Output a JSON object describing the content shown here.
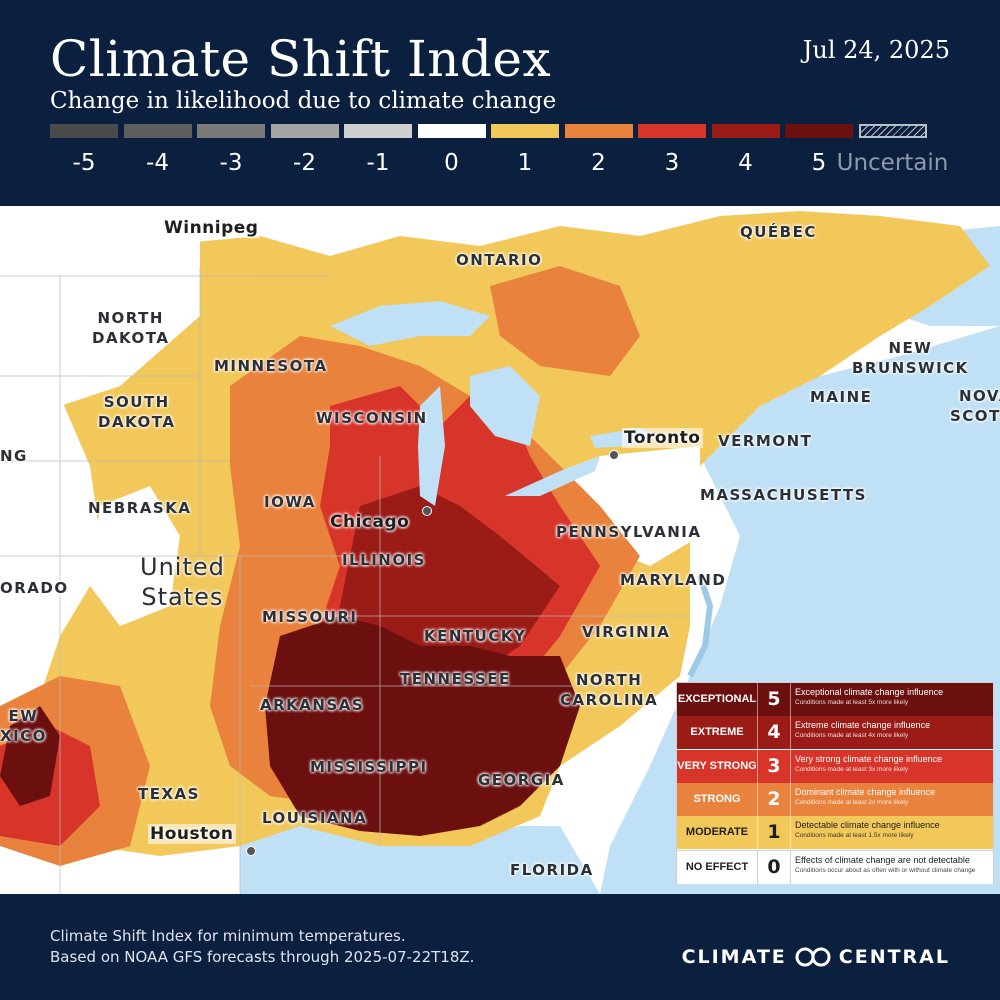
{
  "header": {
    "title": "Climate Shift Index",
    "subtitle": "Change in likelihood due to climate change",
    "date": "Jul 24, 2025"
  },
  "scale": [
    {
      "label": "-5",
      "color": "#4a4a4a"
    },
    {
      "label": "-4",
      "color": "#5e5e5e"
    },
    {
      "label": "-3",
      "color": "#7a7a7a"
    },
    {
      "label": "-2",
      "color": "#a5a5a5"
    },
    {
      "label": "-1",
      "color": "#cfcfcf"
    },
    {
      "label": "0",
      "color": "#ffffff"
    },
    {
      "label": "1",
      "color": "#f2c85b"
    },
    {
      "label": "2",
      "color": "#e8823c"
    },
    {
      "label": "3",
      "color": "#d8352a"
    },
    {
      "label": "4",
      "color": "#9b1c17"
    },
    {
      "label": "5",
      "color": "#6b0f0f"
    },
    {
      "label": "Uncertain",
      "color": "transparent"
    }
  ],
  "map": {
    "labels": {
      "winnipeg": "Winnipeg",
      "quebec": "QUÉBEC",
      "ontario": "ONTARIO",
      "north_dakota": "NORTH\nDAKOTA",
      "minnesota": "MINNESOTA",
      "new_brunswick": "NEW\nBRUNSWICK",
      "nova_scotia": "NOVA\nSCOTIA",
      "south_dakota": "SOUTH\nDAKOTA",
      "wisconsin": "WISCONSIN",
      "maine": "MAINE",
      "wyoming": "NG",
      "toronto": "Toronto",
      "vermont": "VERMONT",
      "iowa": "IOWA",
      "nebraska": "NEBRASKA",
      "massachusetts": "MASSACHUSETTS",
      "chicago": "Chicago",
      "pennsylvania": "PENNSYLVANIA",
      "illinois": "ILLINOIS",
      "united_states": "United\nStates",
      "colorado": "ORADO",
      "maryland": "MARYLAND",
      "missouri": "MISSOURI",
      "kentucky": "KENTUCKY",
      "virginia": "VIRGINIA",
      "tennessee": "TENNESSEE",
      "north_carolina": "NORTH\nCAROLINA",
      "arkansas": "ARKANSAS",
      "new_mexico": "EW\nXICO",
      "mississippi": "MISSISSIPPI",
      "georgia": "GEORGIA",
      "texas": "TEXAS",
      "houston": "Houston",
      "louisiana": "LOUISIANA",
      "florida": "FLORIDA"
    }
  },
  "legend": [
    {
      "name": "EXCEPTIONAL",
      "num": "5",
      "desc": "Exceptional climate change influence",
      "sub": "Conditions made at least 5x more likely",
      "bg": "#6b0f0f",
      "fg": "#ffffff"
    },
    {
      "name": "EXTREME",
      "num": "4",
      "desc": "Extreme climate change influence",
      "sub": "Conditions made at least 4x more likely",
      "bg": "#9b1c17",
      "fg": "#ffffff"
    },
    {
      "name": "VERY STRONG",
      "num": "3",
      "desc": "Very strong climate change influence",
      "sub": "Conditions made at least 3x more likely",
      "bg": "#d8352a",
      "fg": "#ffffff"
    },
    {
      "name": "STRONG",
      "num": "2",
      "desc": "Dominant climate change influence",
      "sub": "Conditions made at least 2x more likely",
      "bg": "#e8823c",
      "fg": "#ffffff"
    },
    {
      "name": "MODERATE",
      "num": "1",
      "desc": "Detectable climate change influence",
      "sub": "Conditions made at least 1.5x more likely",
      "bg": "#f2c85b",
      "fg": "#1e1e1e"
    },
    {
      "name": "NO EFFECT",
      "num": "0",
      "desc": "Effects of climate change are not detectable",
      "sub": "Conditions occur about as often with or without climate change",
      "bg": "#ffffff",
      "fg": "#1e1e1e"
    }
  ],
  "footer": {
    "note_line1": "Climate Shift Index for minimum temperatures.",
    "note_line2": "Based on NOAA GFS forecasts through 2025-07-22T18Z.",
    "brand_left": "CLIMATE",
    "brand_right": "CENTRAL"
  }
}
